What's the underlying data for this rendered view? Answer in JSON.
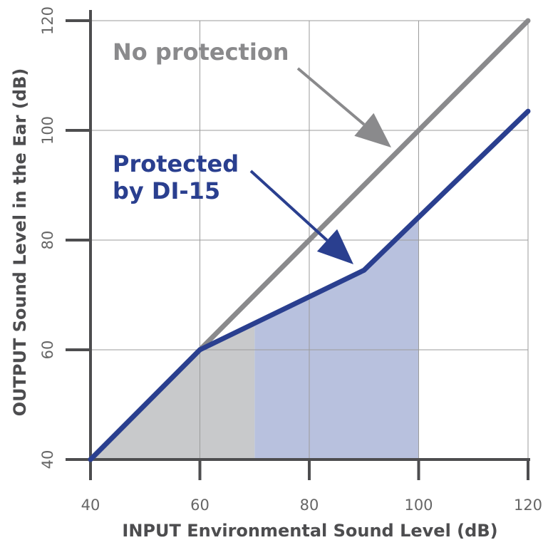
{
  "chart_data": {
    "type": "line",
    "xlabel": "INPUT Environmental Sound Level (dB)",
    "ylabel": "OUTPUT Sound Level in the Ear (dB)",
    "xlim": [
      40,
      120
    ],
    "ylim": [
      40,
      120
    ],
    "x_ticks": [
      40,
      60,
      80,
      100,
      120
    ],
    "y_ticks": [
      40,
      60,
      80,
      100,
      120
    ],
    "grid": true,
    "series": [
      {
        "name": "No protection",
        "color": "#8a8a8c",
        "points": [
          [
            40,
            40
          ],
          [
            120,
            120
          ]
        ]
      },
      {
        "name": "Protected by DI-15",
        "color": "#2a3f8f",
        "points": [
          [
            40,
            40
          ],
          [
            60,
            60
          ],
          [
            90,
            74.5
          ],
          [
            120,
            103.5
          ]
        ]
      }
    ],
    "shaded_regions": [
      {
        "x_range": [
          40,
          70
        ],
        "color": "#c8c9cb"
      },
      {
        "x_range": [
          70,
          100
        ],
        "color": "#b8c1de"
      }
    ],
    "annotations": [
      {
        "text_lines": [
          "No protection"
        ],
        "color": "#8a8a8c",
        "target_series": "No protection"
      },
      {
        "text_lines": [
          "Protected",
          "by DI-15"
        ],
        "color": "#2a3f8f",
        "target_series": "Protected by DI-15"
      }
    ]
  }
}
